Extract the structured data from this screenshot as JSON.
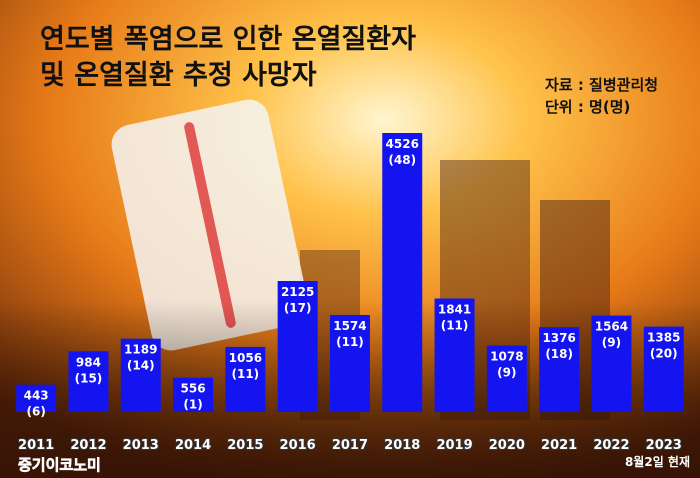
{
  "chart_data": {
    "type": "bar",
    "title_lines": [
      "연도별 폭염으로 인한 온열질환자",
      "및 온열질환 추정 사망자"
    ],
    "source": "자료 : 질병관리청",
    "unit": "단위 : 명(명)",
    "note": "8월2일 현재",
    "logo": "중기이코노미",
    "categories": [
      "2011",
      "2012",
      "2013",
      "2014",
      "2015",
      "2016",
      "2017",
      "2018",
      "2019",
      "2020",
      "2021",
      "2022",
      "2023"
    ],
    "series": [
      {
        "name": "온열질환자",
        "color": "#1414f0",
        "values": [
          443,
          984,
          1189,
          556,
          1056,
          2125,
          1574,
          4526,
          1841,
          1078,
          1376,
          1564,
          1385
        ]
      },
      {
        "name": "추정 사망자",
        "values": [
          6,
          15,
          14,
          1,
          11,
          17,
          11,
          48,
          11,
          9,
          18,
          9,
          20
        ],
        "value_labels": [
          "(6)",
          "(15)",
          "(14)",
          "(1)",
          "(11)",
          "(17)",
          "(11)",
          "(48)",
          "(11)",
          "(9)",
          "(18)",
          "(9)",
          "(20)"
        ]
      }
    ]
  }
}
